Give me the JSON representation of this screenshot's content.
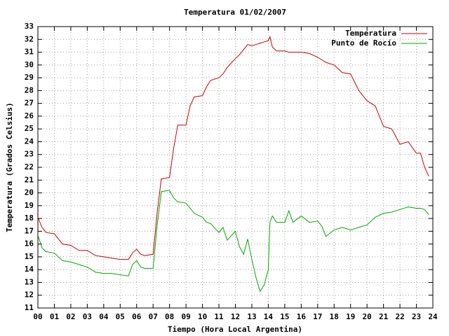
{
  "chart_data": {
    "type": "line",
    "title": "Temperatura 01/02/2007",
    "xlabel": "Tiempo (Hora Local Argentina)",
    "ylabel": "Temperatura (Grados Celsius)",
    "x": [
      0,
      0.25,
      0.5,
      1,
      1.5,
      2,
      2.5,
      3,
      3.5,
      4,
      4.5,
      5,
      5.5,
      5.75,
      6,
      6.25,
      6.5,
      7,
      7.25,
      7.5,
      8,
      8.25,
      8.5,
      9,
      9.25,
      9.5,
      10,
      10.25,
      10.5,
      11,
      11.25,
      11.5,
      12,
      12.25,
      12.5,
      12.75,
      13,
      13.25,
      13.5,
      13.75,
      14,
      14.1,
      14.25,
      14.5,
      15,
      15.25,
      15.5,
      16,
      16.5,
      17,
      17.25,
      17.5,
      18,
      18.5,
      19,
      19.5,
      20,
      20.5,
      21,
      21.5,
      22,
      22.5,
      23,
      23.25,
      23.5,
      23.75
    ],
    "series": [
      {
        "name": "Temperatura",
        "color": "#cc0000",
        "values": [
          18.1,
          17.3,
          16.9,
          16.8,
          16.0,
          15.9,
          15.5,
          15.5,
          15.1,
          15.0,
          14.9,
          14.8,
          14.8,
          15.3,
          15.6,
          15.2,
          15.1,
          15.2,
          18.5,
          21.1,
          21.2,
          23.5,
          25.3,
          25.3,
          26.8,
          27.5,
          27.6,
          28.3,
          28.8,
          29.0,
          29.3,
          29.8,
          30.5,
          30.8,
          31.2,
          31.6,
          31.5,
          31.6,
          31.7,
          31.8,
          31.9,
          32.2,
          31.4,
          31.1,
          31.1,
          31.0,
          31.0,
          31.0,
          30.9,
          30.6,
          30.4,
          30.2,
          30.0,
          29.4,
          29.3,
          28.0,
          27.2,
          26.8,
          25.2,
          25.0,
          23.8,
          24.0,
          23.1,
          23.1,
          22.0,
          21.3
        ]
      },
      {
        "name": "Punto de Rocío",
        "color": "#00aa00",
        "values": [
          16.7,
          15.7,
          15.4,
          15.3,
          14.7,
          14.6,
          14.4,
          14.2,
          13.8,
          13.7,
          13.7,
          13.6,
          13.5,
          14.4,
          14.7,
          14.2,
          14.1,
          14.1,
          17.5,
          20.1,
          20.2,
          19.6,
          19.3,
          19.2,
          18.8,
          18.4,
          18.1,
          17.7,
          17.6,
          16.9,
          17.3,
          16.3,
          17.0,
          15.8,
          15.2,
          16.4,
          14.8,
          13.4,
          12.3,
          12.8,
          14.0,
          17.7,
          18.2,
          17.7,
          17.7,
          18.6,
          17.7,
          18.2,
          17.7,
          17.8,
          17.4,
          16.6,
          17.1,
          17.3,
          17.1,
          17.3,
          17.5,
          18.1,
          18.4,
          18.5,
          18.7,
          18.9,
          18.8,
          18.8,
          18.7,
          18.3
        ]
      }
    ],
    "xlim": [
      0,
      24
    ],
    "xticks": [
      {
        "value": 0,
        "label": "00"
      },
      {
        "value": 1,
        "label": "01"
      },
      {
        "value": 2,
        "label": "02"
      },
      {
        "value": 3,
        "label": "03"
      },
      {
        "value": 4,
        "label": "04"
      },
      {
        "value": 5,
        "label": "05"
      },
      {
        "value": 6,
        "label": "06"
      },
      {
        "value": 7,
        "label": "07"
      },
      {
        "value": 8,
        "label": "08"
      },
      {
        "value": 9,
        "label": "09"
      },
      10,
      11,
      12,
      13,
      14,
      15,
      16,
      17,
      18,
      19,
      20,
      21,
      22,
      23,
      24
    ],
    "ylim": [
      11,
      33
    ],
    "yticks": [
      11,
      12,
      13,
      14,
      15,
      16,
      17,
      18,
      19,
      20,
      21,
      22,
      23,
      24,
      25,
      26,
      27,
      28,
      29,
      30,
      31,
      32,
      33
    ],
    "grid": true,
    "legend": "upper right"
  }
}
